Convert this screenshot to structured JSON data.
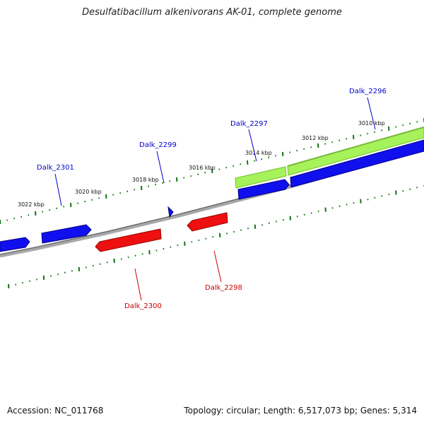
{
  "title": "Desulfatibacillum alkenivorans AK-01, complete genome",
  "footer": {
    "accession": "Accession: NC_011768",
    "summary": "Topology: circular; Length: 6,517,073 bp; Genes: 5,314"
  },
  "colors": {
    "forward_gene": "#0000ee",
    "reverse_gene": "#ee0000",
    "highlight_gene": "#99ee33",
    "backbone": "#808080",
    "ticks": "#117711",
    "forward_label": "#0000cc",
    "reverse_label": "#cc0000"
  },
  "ruler": {
    "labels": [
      "3022 kbp",
      "3020 kbp",
      "3018 kbp",
      "3016 kbp",
      "3014 kbp",
      "3012 kbp",
      "3010 kbp"
    ]
  },
  "genes": [
    {
      "name": "Dalk_2301",
      "strand": "forward"
    },
    {
      "name": "Dalk_2300",
      "strand": "reverse"
    },
    {
      "name": "Dalk_2299",
      "strand": "forward"
    },
    {
      "name": "Dalk_2298",
      "strand": "reverse"
    },
    {
      "name": "Dalk_2297",
      "strand": "forward"
    },
    {
      "name": "Dalk_2296",
      "strand": "forward"
    }
  ]
}
